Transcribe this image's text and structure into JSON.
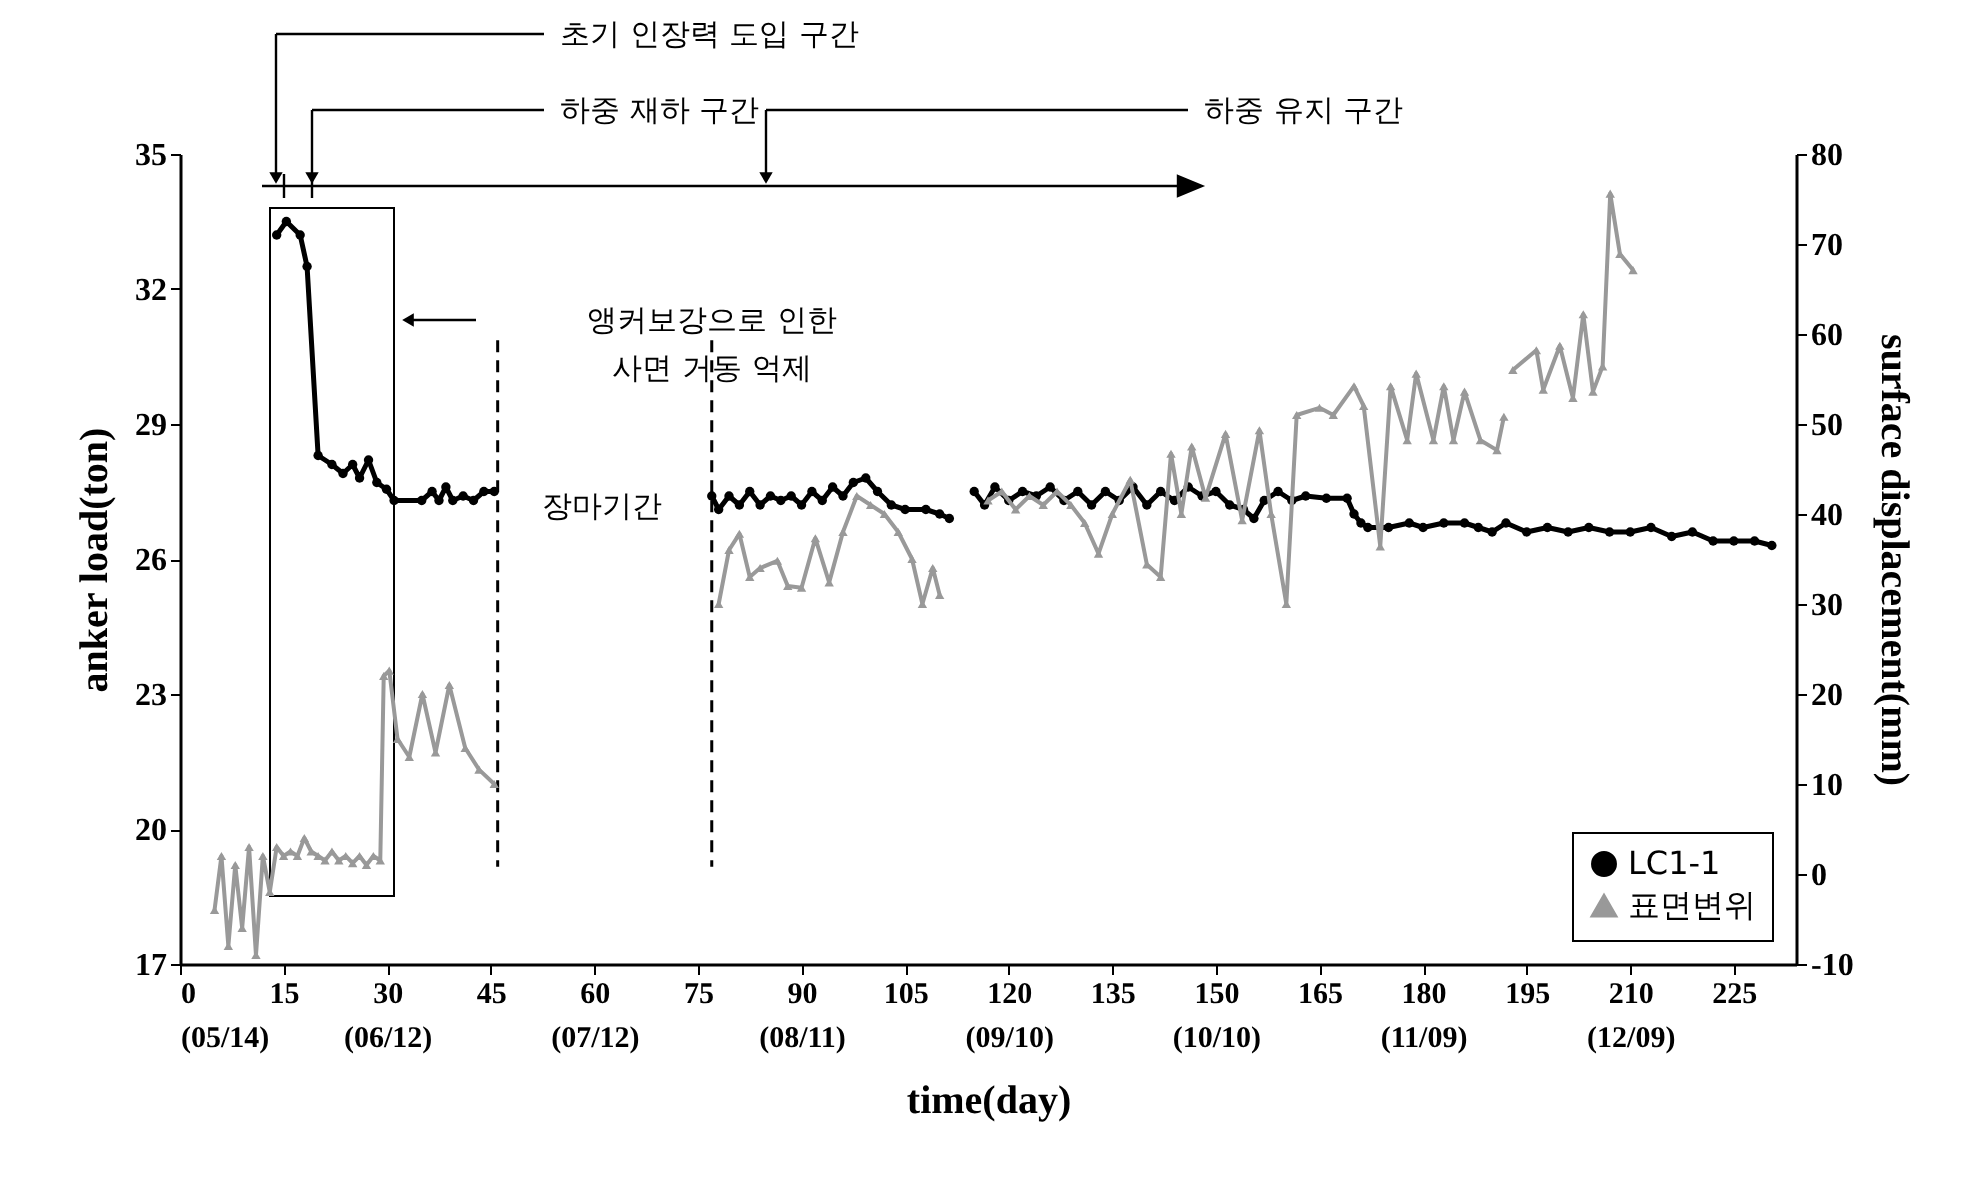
{
  "chart_data": {
    "type": "line",
    "xlabel": "time(day)",
    "ylabel": "anker load(ton)",
    "y2label": "surface displacement(mm)",
    "xlim": [
      0,
      234
    ],
    "ylim": [
      17,
      35
    ],
    "y2lim": [
      -10,
      80
    ],
    "xticks": [
      {
        "value": 0,
        "label": "0\n(05/14)"
      },
      15,
      {
        "value": 30,
        "label": "30\n(06/12)"
      },
      45,
      {
        "value": 60,
        "label": "60\n(07/12)"
      },
      75,
      {
        "value": 90,
        "label": "90\n(08/11)"
      },
      105,
      {
        "value": 120,
        "label": "120\n(09/10)"
      },
      135,
      {
        "value": 150,
        "label": "150\n(10/10)"
      },
      165,
      {
        "value": 180,
        "label": "180\n(11/09)"
      },
      195,
      {
        "value": 210,
        "label": "210\n(12/09)"
      },
      225
    ],
    "yticks": [
      17,
      20,
      23,
      26,
      29,
      32,
      35
    ],
    "y2ticks": [
      -10,
      0,
      10,
      20,
      30,
      40,
      50,
      60,
      70,
      80
    ],
    "grid": false,
    "legend": "bottom right",
    "line_style": "solid",
    "series": [
      {
        "name": "LC1-1",
        "color": "#000000",
        "marker": "circle",
        "x": [
          14,
          15.4,
          17.4,
          18.4,
          20,
          22,
          23.6,
          25,
          26,
          27.3,
          28.5,
          29.9,
          31,
          35,
          36.5,
          37.5,
          38.5,
          39.5,
          41,
          42.5,
          44,
          45.5,
          46,
          77,
          78,
          79.5,
          81,
          82.5,
          84,
          85.5,
          87,
          88.5,
          90,
          91.5,
          93,
          94.5,
          96,
          97.5,
          99.3,
          101,
          103,
          105,
          108,
          110,
          111.4,
          113,
          115,
          116.5,
          118,
          120,
          122,
          124,
          126,
          128,
          130,
          132,
          134,
          136,
          138,
          140,
          142,
          144,
          146,
          148,
          150,
          152,
          154,
          155.5,
          157,
          159,
          161,
          163,
          166,
          169,
          170,
          171,
          172,
          175,
          178,
          180,
          183,
          186,
          188,
          190,
          192,
          195,
          198,
          201,
          204,
          207,
          210,
          213,
          216,
          219,
          222,
          225,
          228,
          230.5
        ],
        "values": [
          33.2,
          33.5,
          33.2,
          32.5,
          28.3,
          28.1,
          27.9,
          28.1,
          27.8,
          28.2,
          27.7,
          27.55,
          27.3,
          27.3,
          27.5,
          27.3,
          27.6,
          27.3,
          27.4,
          27.3,
          27.5,
          27.5,
          null,
          27.4,
          27.1,
          27.4,
          27.2,
          27.5,
          27.2,
          27.4,
          27.3,
          27.4,
          27.2,
          27.5,
          27.3,
          27.6,
          27.4,
          27.7,
          27.8,
          27.5,
          27.2,
          27.1,
          27.1,
          27.0,
          26.9,
          null,
          27.5,
          27.2,
          27.6,
          27.3,
          27.5,
          27.4,
          27.6,
          27.3,
          27.5,
          27.2,
          27.5,
          27.3,
          27.6,
          27.2,
          27.5,
          27.3,
          27.6,
          27.4,
          27.5,
          27.2,
          27.1,
          26.9,
          27.3,
          27.5,
          27.3,
          27.4,
          27.35,
          27.35,
          27.0,
          26.8,
          26.7,
          26.7,
          26.8,
          26.7,
          26.8,
          26.8,
          26.7,
          26.6,
          26.8,
          26.6,
          26.7,
          26.6,
          26.7,
          26.6,
          26.6,
          26.7,
          26.5,
          26.6,
          26.4,
          26.4,
          26.4,
          26.3
        ]
      },
      {
        "name": "표면변위",
        "color": "#999999",
        "marker": "triangle",
        "axis": "y2",
        "x": [
          5,
          6,
          7,
          8,
          9,
          10,
          11,
          12,
          13,
          14,
          15,
          16,
          17,
          18,
          19,
          20,
          21,
          22,
          23,
          24,
          25,
          26,
          27,
          28,
          29,
          29.5,
          30.3,
          31.5,
          33.2,
          35.1,
          37,
          39,
          41.3,
          43.3,
          45.5,
          46,
          78,
          79.5,
          81,
          82.5,
          84,
          86.5,
          88,
          90,
          92,
          94,
          96,
          98,
          100,
          102,
          104,
          106,
          107.5,
          109,
          110,
          112,
          117,
          119,
          121,
          123,
          125,
          127,
          129,
          131,
          133,
          135,
          137.6,
          140,
          142,
          143.5,
          145,
          146.5,
          148.5,
          151.4,
          153.8,
          156.3,
          158,
          160.2,
          161.7,
          165,
          167,
          170,
          171.4,
          173.8,
          175.3,
          177.7,
          179,
          181.5,
          183,
          184.4,
          186,
          188.3,
          190.7,
          191.7,
          192.5,
          193,
          196.4,
          197.4,
          199.8,
          201.7,
          203.2,
          204.6,
          206,
          207.1,
          208.5,
          210.4
        ],
        "values": [
          -4,
          2,
          -8,
          1,
          -6,
          3,
          -9,
          2,
          -2,
          3,
          2,
          2.5,
          2,
          4,
          2.5,
          2,
          1.5,
          2.5,
          1.5,
          2,
          1.2,
          2,
          1,
          2,
          1.5,
          22,
          22.6,
          15,
          13,
          20,
          13.5,
          21,
          14,
          11.6,
          10,
          null,
          30,
          36,
          37.8,
          33,
          34,
          34.8,
          32,
          31.8,
          37.3,
          32.4,
          38,
          42,
          41,
          40,
          38,
          35,
          30,
          34,
          31,
          null,
          41.5,
          42.5,
          40.5,
          42,
          41,
          42.5,
          41,
          39,
          35.6,
          40,
          43.8,
          34.4,
          33,
          46.7,
          40,
          47.5,
          41.8,
          48.9,
          39.3,
          49.3,
          40,
          30,
          51,
          51.8,
          51,
          54.2,
          52,
          36.4,
          54.2,
          48.2,
          55.6,
          48.2,
          54.2,
          48.2,
          53.6,
          48.2,
          47.1,
          50.8,
          null,
          56,
          58.2,
          53.8,
          58.7,
          52.9,
          62.2,
          53.6,
          56.4,
          75.6,
          68.9,
          67.1
        ]
      }
    ],
    "ref_lines": [
      {
        "axis": "x",
        "value": 46,
        "line_style": "dashed",
        "color": "#000000"
      },
      {
        "axis": "x",
        "value": 77,
        "line_style": "dashed",
        "color": "#000000"
      }
    ],
    "annotations": [
      "초기 인장력 도입 구간",
      "하중 재하 구간",
      "하중 유지 구간",
      "앵커보강으로 인한\n사면 거동 억제",
      "장마기간"
    ]
  }
}
